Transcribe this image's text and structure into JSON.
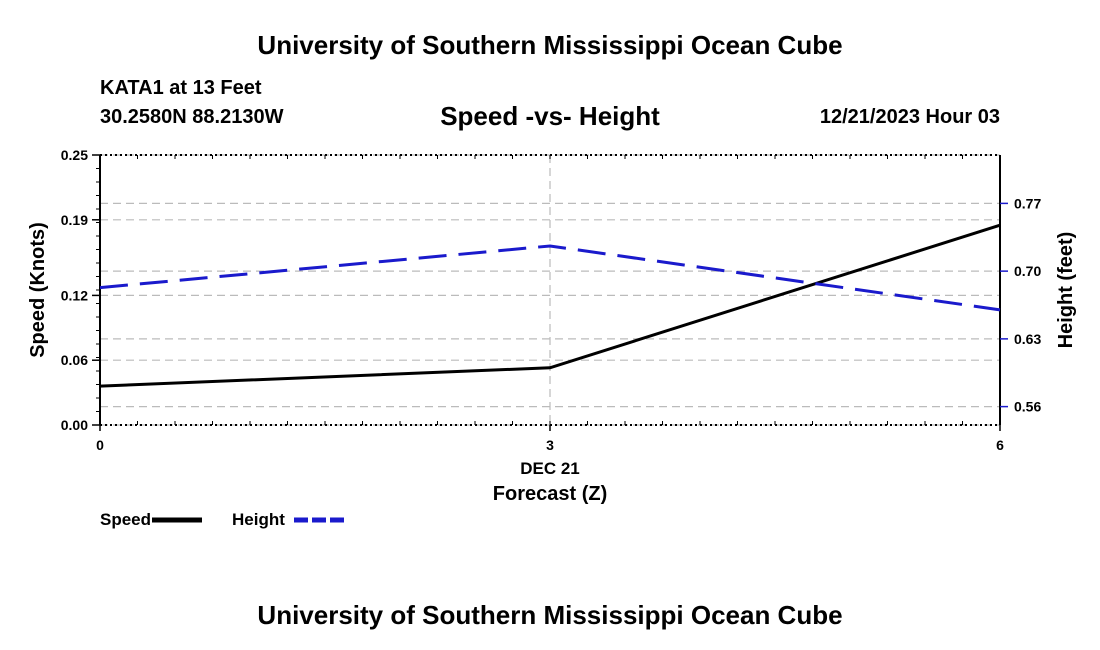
{
  "header": {
    "title": "University of Southern Mississippi Ocean Cube",
    "station": "KATA1 at 13 Feet",
    "coordinates": "30.2580N  88.2130W",
    "datetime": "12/21/2023 Hour 03"
  },
  "footer": {
    "title": "University of Southern Mississippi Ocean Cube"
  },
  "chart_data": {
    "type": "line",
    "title": "Speed -vs- Height",
    "xlabel": "Forecast (Z)",
    "x_date_label": "DEC 21",
    "ylabel_left": "Speed (Knots)",
    "ylabel_right": "Height (feet)",
    "x": [
      0,
      3,
      6
    ],
    "x_tick_labels": [
      "0",
      "3",
      "6"
    ],
    "xlim": [
      0,
      6
    ],
    "ylim_left": [
      0,
      0.25
    ],
    "left_ticks": [
      0.0,
      0.06,
      0.12,
      0.19,
      0.25
    ],
    "left_tick_labels": [
      "0.00",
      "0.06",
      "0.12",
      "0.19",
      "0.25"
    ],
    "ylim_right": [
      0.541,
      0.82
    ],
    "right_ticks": [
      0.56,
      0.63,
      0.7,
      0.77
    ],
    "right_tick_labels": [
      "0.56",
      "0.63",
      "0.70",
      "0.77"
    ],
    "grid": true,
    "series": [
      {
        "name": "Speed",
        "axis": "left",
        "style": "solid",
        "color": "#000000",
        "values": [
          0.036,
          0.053,
          0.185
        ]
      },
      {
        "name": "Height",
        "axis": "right",
        "style": "dashed",
        "color": "#1a1acc",
        "values": [
          0.683,
          0.726,
          0.66
        ]
      }
    ],
    "legend": [
      {
        "label": "Speed",
        "color": "#000000",
        "style": "solid"
      },
      {
        "label": "Height",
        "color": "#1a1acc",
        "style": "dashed"
      }
    ],
    "legend_position": "bottom-left"
  }
}
